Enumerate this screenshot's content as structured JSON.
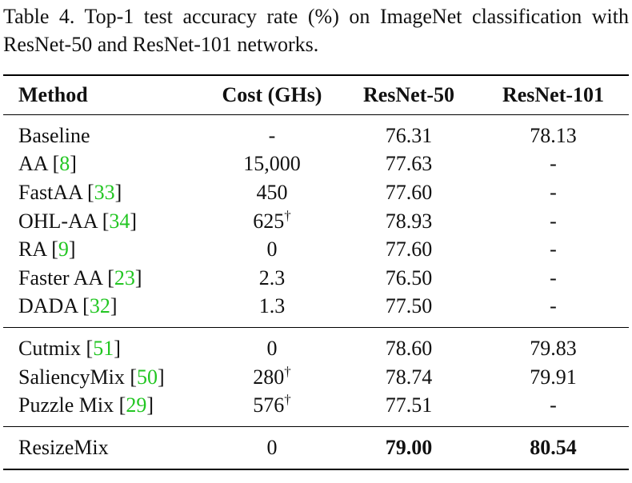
{
  "caption": "Table 4. Top-1 test accuracy rate (%) on ImageNet classification with ResNet-50 and ResNet-101 networks.",
  "colors": {
    "citation": "#22c622",
    "rule": "#000000"
  },
  "headers": [
    "Method",
    "Cost (GHs)",
    "ResNet-50",
    "ResNet-101"
  ],
  "groups": [
    [
      {
        "method": "Baseline",
        "ref": "",
        "cost": "-",
        "dagger": "",
        "r50": "76.31",
        "r101": "78.13"
      },
      {
        "method": "AA",
        "ref": "8",
        "cost": "15,000",
        "dagger": "",
        "r50": "77.63",
        "r101": "-"
      },
      {
        "method": "FastAA",
        "ref": "33",
        "cost": "450",
        "dagger": "",
        "r50": "77.60",
        "r101": "-"
      },
      {
        "method": "OHL-AA",
        "ref": "34",
        "cost": "625",
        "dagger": "†",
        "r50": "78.93",
        "r101": "-"
      },
      {
        "method": "RA",
        "ref": "9",
        "cost": "0",
        "dagger": "",
        "r50": "77.60",
        "r101": "-"
      },
      {
        "method": "Faster AA",
        "ref": "23",
        "cost": "2.3",
        "dagger": "",
        "r50": "76.50",
        "r101": "-"
      },
      {
        "method": "DADA",
        "ref": "32",
        "cost": "1.3",
        "dagger": "",
        "r50": "77.50",
        "r101": "-"
      }
    ],
    [
      {
        "method": "Cutmix",
        "ref": "51",
        "cost": "0",
        "dagger": "",
        "r50": "78.60",
        "r101": "79.83"
      },
      {
        "method": "SaliencyMix",
        "ref": "50",
        "cost": "280",
        "dagger": "†",
        "r50": "78.74",
        "r101": "79.91"
      },
      {
        "method": "Puzzle Mix",
        "ref": "29",
        "cost": "576",
        "dagger": "†",
        "r50": "77.51",
        "r101": "-"
      }
    ],
    [
      {
        "method": "ResizeMix",
        "ref": "",
        "cost": "0",
        "dagger": "",
        "r50": "79.00",
        "r101": "80.54",
        "bold": true
      }
    ]
  ]
}
